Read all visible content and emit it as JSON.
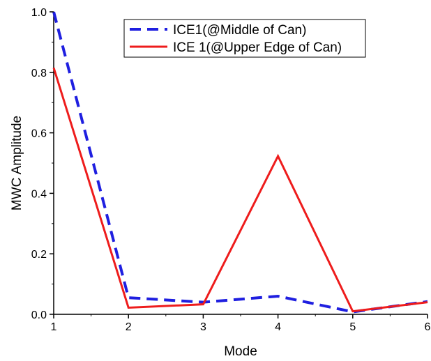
{
  "chart_data": {
    "type": "line",
    "title": "",
    "xlabel": "Mode",
    "ylabel": "MWC Amplitude",
    "x": [
      1,
      2,
      3,
      4,
      5,
      6
    ],
    "xlim": [
      1,
      6
    ],
    "ylim": [
      0,
      1.0
    ],
    "xticks": [
      "1",
      "2",
      "3",
      "4",
      "5",
      "6"
    ],
    "yticks": [
      "0.0",
      "0.2",
      "0.4",
      "0.6",
      "0.8",
      "1.0"
    ],
    "grid": false,
    "legend_position": "top-right",
    "series": [
      {
        "name": "ICE1(@Middle of Can)",
        "values": [
          1.0,
          0.055,
          0.04,
          0.06,
          0.008,
          0.042
        ],
        "color": "#1f1fe0",
        "style": "dashed"
      },
      {
        "name": "ICE 1(@Upper Edge of Can)",
        "values": [
          0.815,
          0.022,
          0.033,
          0.523,
          0.01,
          0.04
        ],
        "color": "#ee1c1c",
        "style": "solid"
      }
    ]
  }
}
